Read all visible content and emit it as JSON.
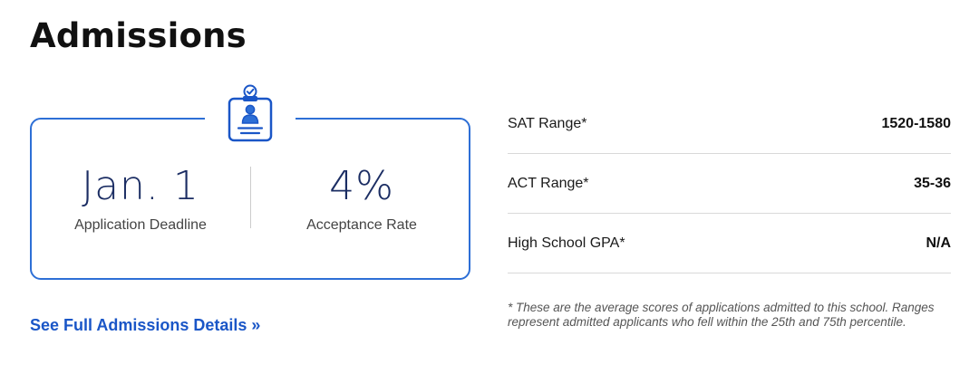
{
  "section": {
    "title": "Admissions"
  },
  "card": {
    "icon": "id-badge-icon",
    "deadline": {
      "value": "Jan. 1",
      "label": "Application Deadline"
    },
    "acceptance": {
      "value": "4%",
      "label": "Acceptance Rate"
    }
  },
  "details_link": {
    "label": "See Full Admissions Details »"
  },
  "scores": [
    {
      "label": "SAT Range*",
      "value": "1520-1580"
    },
    {
      "label": "ACT Range*",
      "value": "35-36"
    },
    {
      "label": "High School GPA*",
      "value": "N/A"
    }
  ],
  "footnote": "* These are the average scores of applications admitted to this school. Ranges represent admitted applicants who fell within the 25th and 75th percentile.",
  "colors": {
    "accent": "#2d6fd6",
    "link": "#1a56c7",
    "stat_text": "#1b2d63"
  }
}
